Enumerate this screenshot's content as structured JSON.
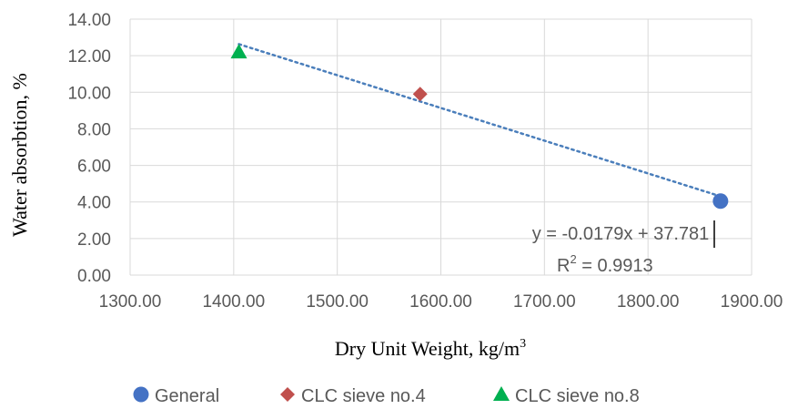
{
  "chart_data": {
    "type": "scatter",
    "xlabel": "Dry Unit Weight, kg/m",
    "xlabel_sup": "3",
    "ylabel": "Water absorbtion, %",
    "xlim": [
      1300,
      1900
    ],
    "ylim": [
      0,
      14
    ],
    "xticks": [
      "1300.00",
      "1400.00",
      "1500.00",
      "1600.00",
      "1700.00",
      "1800.00",
      "1900.00"
    ],
    "yticks": [
      "0.00",
      "2.00",
      "4.00",
      "6.00",
      "8.00",
      "10.00",
      "12.00",
      "14.00"
    ],
    "grid": true,
    "legend_position": "bottom",
    "series": [
      {
        "name": "General",
        "marker": "circle",
        "color": "#4472C4",
        "points": [
          {
            "x": 1870,
            "y": 4.05
          }
        ]
      },
      {
        "name": "CLC sieve no.4",
        "marker": "diamond",
        "color": "#C0504D",
        "points": [
          {
            "x": 1580,
            "y": 9.9
          }
        ]
      },
      {
        "name": "CLC sieve no.8",
        "marker": "triangle",
        "color": "#00B050",
        "points": [
          {
            "x": 1405,
            "y": 12.2
          }
        ]
      }
    ],
    "trendline": {
      "style": "dotted",
      "color": "#4A7EBB",
      "slope": -0.0179,
      "intercept": 37.781,
      "x_range": [
        1405,
        1870
      ],
      "equation_label": "y = -0.0179x + 37.781",
      "r2_prefix": "R",
      "r2_sup": "2",
      "r2_suffix": " = 0.9913"
    }
  }
}
